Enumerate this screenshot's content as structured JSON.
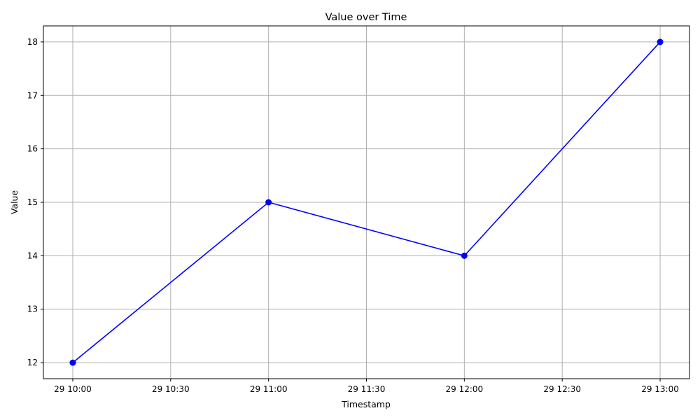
{
  "chart_data": {
    "type": "line",
    "title": "Value over Time",
    "xlabel": "Timestamp",
    "ylabel": "Value",
    "x": [
      "29 10:00",
      "29 11:00",
      "29 12:00",
      "29 13:00"
    ],
    "series": [
      {
        "values": [
          12,
          15,
          14,
          18
        ],
        "color": "#0000ff",
        "marker": "circle"
      }
    ],
    "x_ticks": [
      "29 10:00",
      "29 10:30",
      "29 11:00",
      "29 11:30",
      "29 12:00",
      "29 12:30",
      "29 13:00"
    ],
    "y_ticks": [
      12,
      13,
      14,
      15,
      16,
      17,
      18
    ],
    "ylim": [
      11.7,
      18.3
    ],
    "xlim": [
      "29 09:51",
      "29 13:09"
    ],
    "grid": true
  }
}
